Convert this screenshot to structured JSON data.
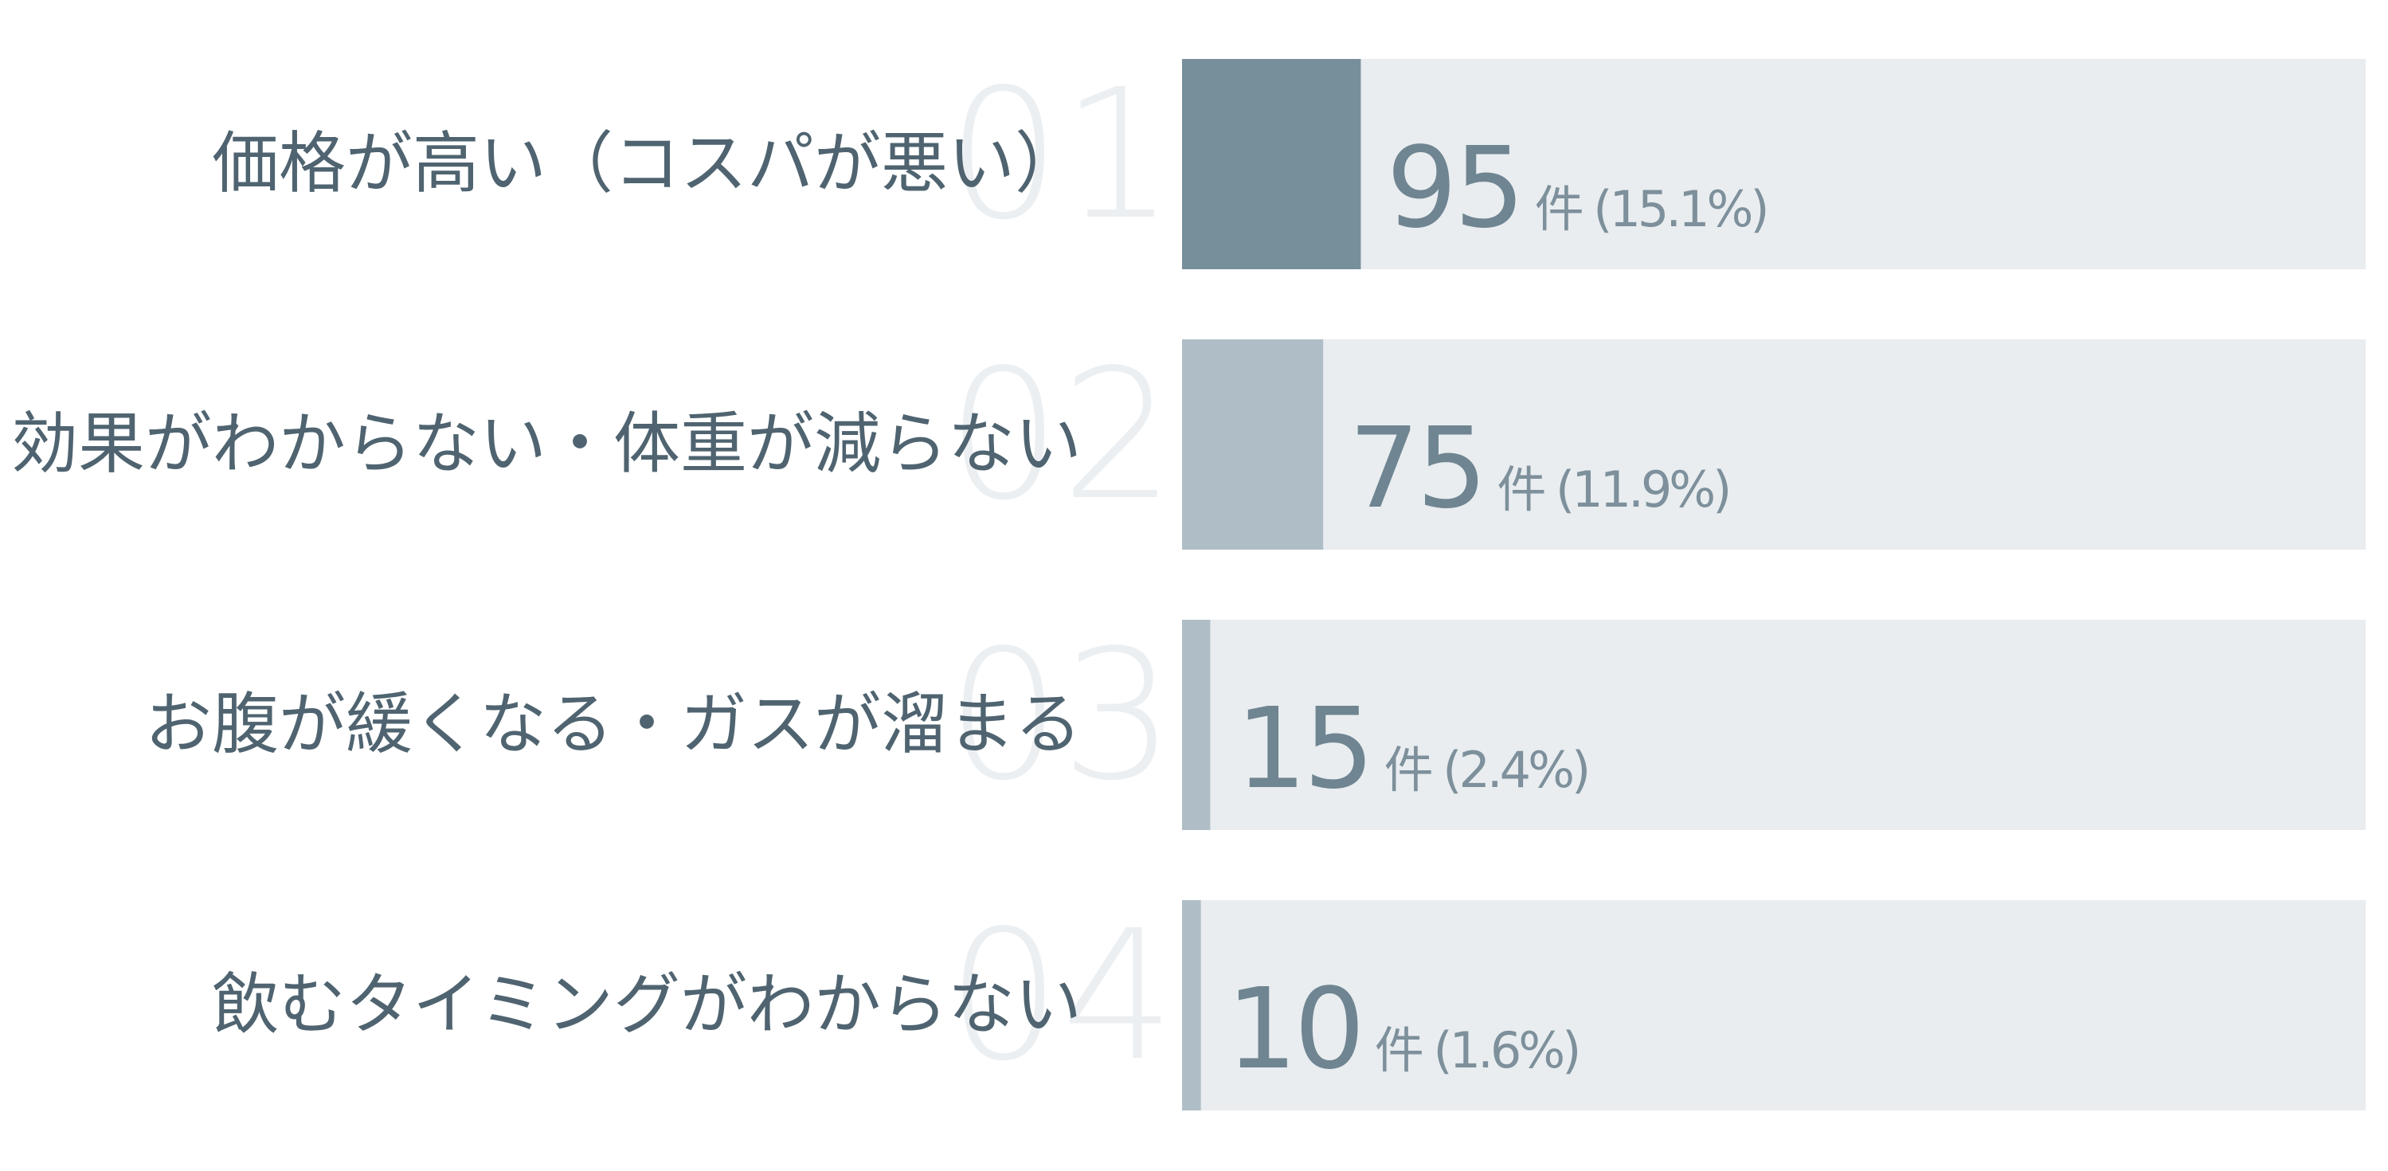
{
  "chart_data": {
    "type": "bar",
    "orientation": "horizontal",
    "categories": [
      "価格が高い（コスパが悪い）",
      "効果がわからない・体重が減らない",
      "お腹が緩くなる・ガスが溜まる",
      "飲むタイミングがわからない"
    ],
    "ranks": [
      "01",
      "02",
      "03",
      "04"
    ],
    "values": [
      95,
      75,
      15,
      10
    ],
    "percent_labels": [
      "(15.1%)",
      "(11.9%)",
      "(2.4%)",
      "(1.6%)"
    ],
    "unit": "件",
    "scale_max": 629,
    "colors": {
      "top_bar": "#778f9a",
      "other_bars": "#afbec6",
      "track": "#e9edf0",
      "rank_number": "#eceff2",
      "label": "#4f6470",
      "value": "#6f8591"
    }
  }
}
